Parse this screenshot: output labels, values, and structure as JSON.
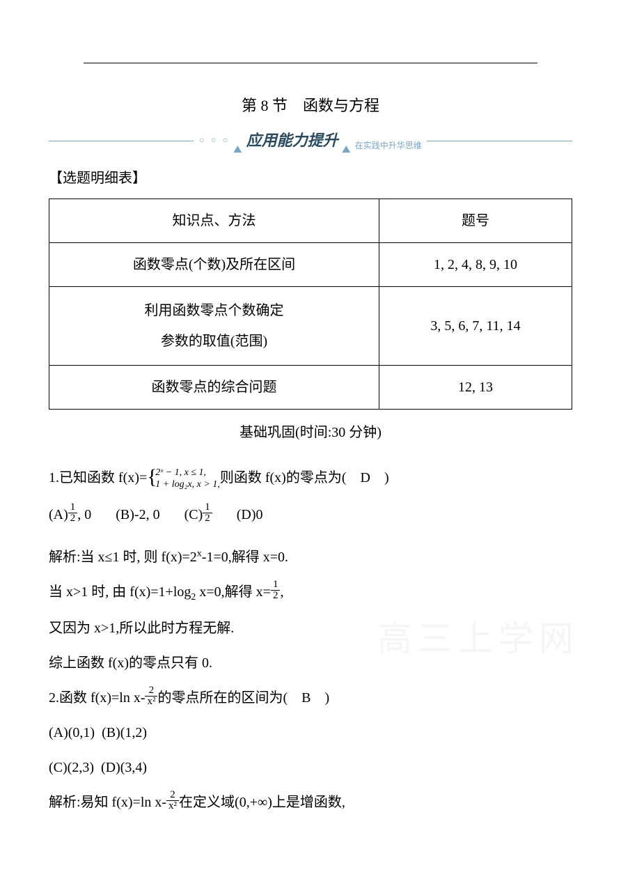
{
  "title": "第 8 节　函数与方程",
  "banner": {
    "main": "应用能力提升",
    "sub": "在实践中升华思维"
  },
  "heading": "【选题明细表】",
  "table": {
    "headers": [
      "知识点、方法",
      "题号"
    ],
    "rows": [
      [
        "函数零点(个数)及所在区间",
        "1, 2, 4, 8, 9, 10"
      ],
      [
        "利用函数零点个数确定\n参数的取值(范围)",
        "3, 5, 6, 7, 11, 14"
      ],
      [
        "函数零点的综合问题",
        "12, 13"
      ]
    ]
  },
  "subtitle": "基础巩固(时间:30 分钟)",
  "q1": {
    "stem_pre": "1.已知函数 f(x)=",
    "piece1": "2ˣ − 1, x ≤ 1,",
    "piece2": "1 + log₂x, x > 1,",
    "stem_post": "则函数 f(x)的零点为(　D　)",
    "choices": {
      "A_pre": "(A)",
      "A_frac_num": "1",
      "A_frac_den": "2",
      "A_post": ", 0",
      "B": "(B)-2, 0",
      "C_pre": "(C)",
      "C_frac_num": "1",
      "C_frac_den": "2",
      "D": "(D)0"
    },
    "sol1_pre": "解析:当 x≤1 时, 则 f(x)=2",
    "sol1_sup": "x",
    "sol1_post": "-1=0,解得 x=0.",
    "sol2_pre": "当 x>1 时, 由 f(x)=1+log",
    "sol2_sub": "2",
    "sol2_mid": " x=0,解得 x=",
    "sol2_frac_num": "1",
    "sol2_frac_den": "2",
    "sol2_post": ",",
    "sol3": "又因为 x>1,所以此时方程无解.",
    "sol4": "综上函数 f(x)的零点只有 0."
  },
  "q2": {
    "stem_pre": "2.函数 f(x)=ln x-",
    "frac_num": "2",
    "frac_den": "x²",
    "stem_post": "的零点所在的区间为(　B　)",
    "choices": {
      "A": "(A)(0,1)",
      "B": "(B)(1,2)",
      "C": "(C)(2,3)",
      "D": "(D)(3,4)"
    },
    "sol_pre": "解析:易知 f(x)=ln x-",
    "sol_frac_num": "2",
    "sol_frac_den": "x²",
    "sol_post": "在定义域(0,+∞)上是增函数,"
  },
  "watermark": "高三上学网"
}
